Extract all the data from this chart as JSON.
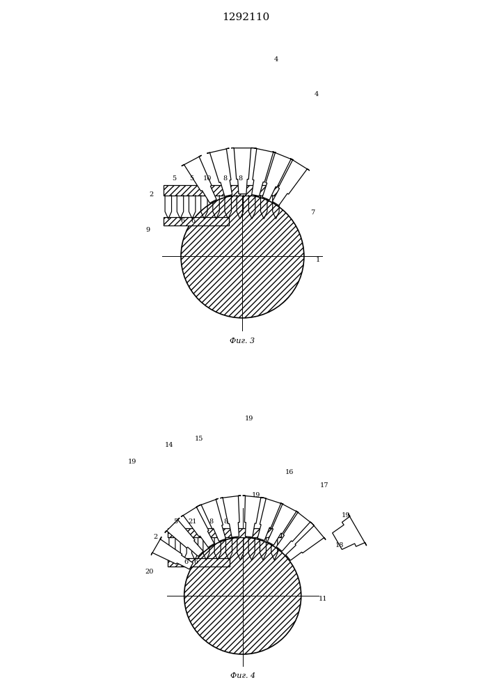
{
  "title": "1292110",
  "fig3_label": "Фиг. 3",
  "fig4_label": "Фиг. 4",
  "bg": "#ffffff",
  "lc": "#000000"
}
